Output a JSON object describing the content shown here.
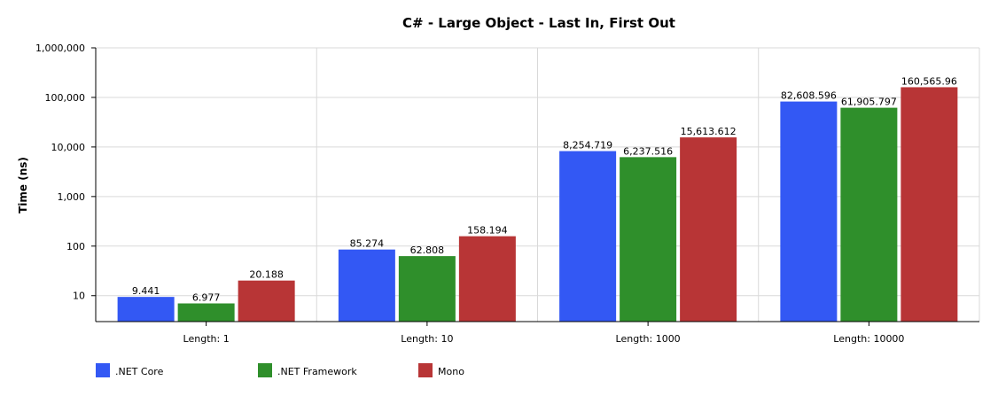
{
  "chart_data": {
    "type": "bar",
    "title": "C# - Large Object - Last In, First Out",
    "xlabel": "",
    "ylabel": "Time (ns)",
    "yscale": "log",
    "ylim": [
      3,
      1000000
    ],
    "yticks": [
      {
        "value": 10,
        "label": "10"
      },
      {
        "value": 100,
        "label": "100"
      },
      {
        "value": 1000,
        "label": "1,000"
      },
      {
        "value": 10000,
        "label": "10,000"
      },
      {
        "value": 100000,
        "label": "100,000"
      },
      {
        "value": 1000000,
        "label": "1,000,000"
      }
    ],
    "grid": true,
    "legend_position": "bottom-left",
    "categories": [
      "Length: 1",
      "Length: 10",
      "Length: 1000",
      "Length: 10000"
    ],
    "series": [
      {
        "name": ".NET Core",
        "color": "#3358f4",
        "values": [
          9.441,
          85.274,
          8254.719,
          82608.596
        ],
        "labels": [
          "9.441",
          "85.274",
          "8,254.719",
          "82,608.596"
        ]
      },
      {
        "name": ".NET Framework",
        "color": "#2f8f2b",
        "values": [
          6.977,
          62.808,
          6237.516,
          61905.797
        ],
        "labels": [
          "6.977",
          "62.808",
          "6,237.516",
          "61,905.797"
        ]
      },
      {
        "name": "Mono",
        "color": "#b83536",
        "values": [
          20.188,
          158.194,
          15613.612,
          160565.96
        ],
        "labels": [
          "20.188",
          "158.194",
          "15,613.612",
          "160,565.96"
        ]
      }
    ]
  }
}
